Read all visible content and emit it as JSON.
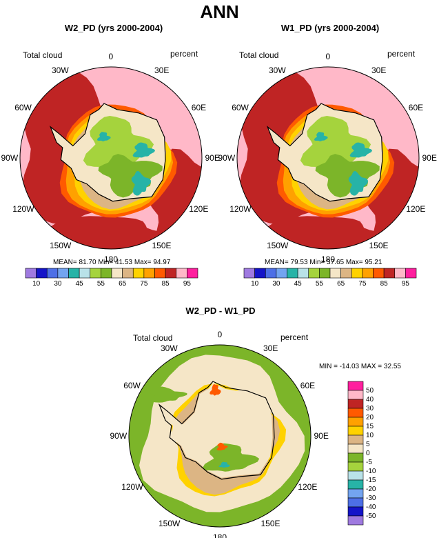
{
  "figure_title": "ANN",
  "colors": {
    "seq_scale": [
      "#9f7ae0",
      "#1414c8",
      "#4d6fe6",
      "#73a4f0",
      "#27b3a7",
      "#b9e2e8",
      "#a5d33d",
      "#7cb529",
      "#f5e6c7",
      "#dcb584",
      "#ffd200",
      "#ffa100",
      "#ff5a00",
      "#bf2424",
      "#ffb8c8",
      "#ff1f9e"
    ],
    "diff_scale": [
      "#9f7ae0",
      "#1414c8",
      "#4d6fe6",
      "#73a4f0",
      "#27b3a7",
      "#b9e2e8",
      "#a5d33d",
      "#7cb529",
      "#f5e6c7",
      "#dcb584",
      "#ffd200",
      "#ffa100",
      "#ff5a00",
      "#bf2424",
      "#ffb8c8",
      "#ff1f9e"
    ]
  },
  "chart_data": [
    {
      "type": "heatmap",
      "projection": "south-polar-stereographic",
      "title": "W2_PD (yrs 2000-2004)",
      "left_label": "Total cloud",
      "right_label": "percent",
      "longitude_labels": [
        "0",
        "30E",
        "60E",
        "90E",
        "120E",
        "150E",
        "180",
        "150W",
        "120W",
        "90W",
        "60W",
        "30W"
      ],
      "stats": {
        "mean": "81.70",
        "min": "41.53",
        "max": "94.97"
      },
      "stats_text": "MEAN= 81.70  Min= 41.53  Max= 94.97",
      "colorbar": {
        "levels": [
          10,
          15,
          20,
          25,
          30,
          35,
          40,
          45,
          50,
          55,
          60,
          65,
          70,
          75,
          80,
          85,
          90,
          95
        ],
        "tick_labels": [
          "10",
          "30",
          "45",
          "55",
          "65",
          "75",
          "85",
          "95"
        ]
      }
    },
    {
      "type": "heatmap",
      "projection": "south-polar-stereographic",
      "title": "W1_PD (yrs 2000-2004)",
      "left_label": "Total cloud",
      "right_label": "percent",
      "longitude_labels": [
        "0",
        "30E",
        "60E",
        "90E",
        "120E",
        "150E",
        "180",
        "150W",
        "120W",
        "90W",
        "60W",
        "30W"
      ],
      "stats": {
        "mean": "79.53",
        "min": "37.65",
        "max": "95.21"
      },
      "stats_text": "MEAN= 79.53  Min= 37.65  Max= 95.21",
      "colorbar": {
        "levels": [
          10,
          15,
          20,
          25,
          30,
          35,
          40,
          45,
          50,
          55,
          60,
          65,
          70,
          75,
          80,
          85,
          90,
          95
        ],
        "tick_labels": [
          "10",
          "30",
          "45",
          "55",
          "65",
          "75",
          "85",
          "95"
        ]
      }
    },
    {
      "type": "heatmap",
      "projection": "south-polar-stereographic",
      "title": "W2_PD - W1_PD",
      "left_label": "Total cloud",
      "right_label": "percent",
      "longitude_labels": [
        "0",
        "30E",
        "60E",
        "90E",
        "120E",
        "150E",
        "180",
        "150W",
        "120W",
        "90W",
        "60W",
        "30W"
      ],
      "stats": {
        "min": "-14.03",
        "max": "32.55"
      },
      "stats_text": "MIN = -14.03 MAX = 32.55",
      "colorbar": {
        "orientation": "vertical",
        "tick_labels": [
          "50",
          "40",
          "30",
          "20",
          "15",
          "10",
          "5",
          "0",
          "-5",
          "-10",
          "-15",
          "-20",
          "-30",
          "-40",
          "-50"
        ]
      }
    }
  ]
}
